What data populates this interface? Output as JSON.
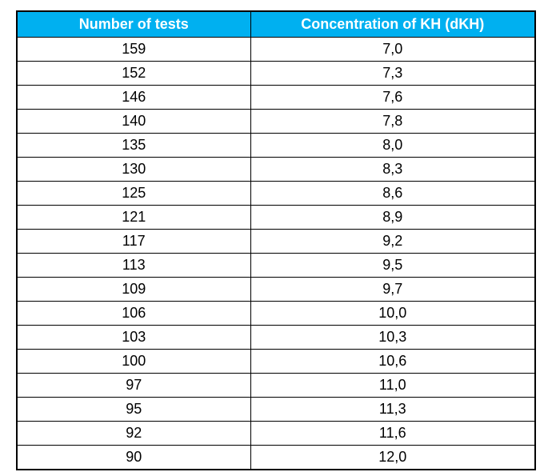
{
  "table": {
    "headers": [
      "Number of tests",
      "Concentration of KH (dKH)"
    ],
    "rows": [
      [
        "159",
        "7,0"
      ],
      [
        "152",
        "7,3"
      ],
      [
        "146",
        "7,6"
      ],
      [
        "140",
        "7,8"
      ],
      [
        "135",
        "8,0"
      ],
      [
        "130",
        "8,3"
      ],
      [
        "125",
        "8,6"
      ],
      [
        "121",
        "8,9"
      ],
      [
        "117",
        "9,2"
      ],
      [
        "113",
        "9,5"
      ],
      [
        "109",
        "9,7"
      ],
      [
        "106",
        "10,0"
      ],
      [
        "103",
        "10,3"
      ],
      [
        "100",
        "10,6"
      ],
      [
        "97",
        "11,0"
      ],
      [
        "95",
        "11,3"
      ],
      [
        "92",
        "11,6"
      ],
      [
        "90",
        "12,0"
      ]
    ]
  },
  "colors": {
    "header_bg": "#00b0f0",
    "header_text": "#ffffff",
    "border": "#000000"
  }
}
